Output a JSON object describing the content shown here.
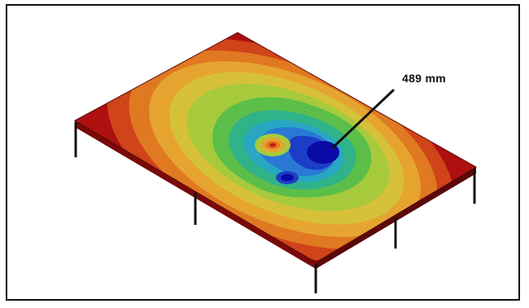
{
  "annotation": {
    "value_label": "489 mm"
  },
  "colors": {
    "plate_edge": "#b01010",
    "contour_scale": [
      "#b01010",
      "#d2441a",
      "#e27a22",
      "#e8a630",
      "#d8c23a",
      "#a8cc3c",
      "#5cc04a",
      "#30b48a",
      "#28a8c4",
      "#2a7ad8",
      "#1c3ec8",
      "#0a0aa8"
    ],
    "hot_spot": "#c81c10",
    "columns": "#111111",
    "frame": "#111111"
  }
}
